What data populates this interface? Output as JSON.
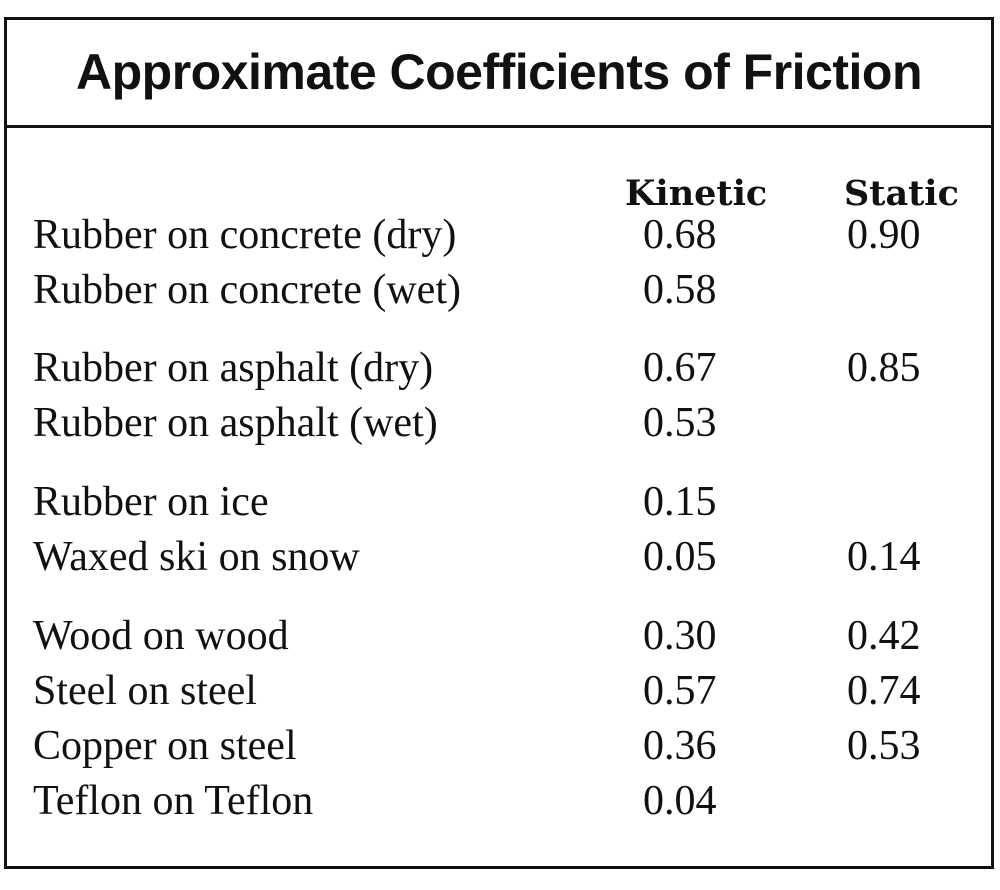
{
  "title": "Approximate Coefficients of Friction",
  "columns": {
    "kinetic": "Kinetic",
    "static": "Static"
  },
  "rows": [
    {
      "label": "Rubber on concrete (dry)",
      "kinetic": "0.68",
      "static": "0.90"
    },
    {
      "label": "Rubber on concrete (wet)",
      "kinetic": "0.58",
      "static": ""
    },
    {
      "label": "Rubber on asphalt (dry)",
      "kinetic": "0.67",
      "static": "0.85"
    },
    {
      "label": "Rubber on asphalt (wet)",
      "kinetic": "0.53",
      "static": ""
    },
    {
      "label": "Rubber on ice",
      "kinetic": "0.15",
      "static": ""
    },
    {
      "label": "Waxed ski on snow",
      "kinetic": "0.05",
      "static": "0.14"
    },
    {
      "label": "Wood on wood",
      "kinetic": "0.30",
      "static": "0.42"
    },
    {
      "label": "Steel on steel",
      "kinetic": "0.57",
      "static": "0.74"
    },
    {
      "label": "Copper on steel",
      "kinetic": "0.36",
      "static": "0.53"
    },
    {
      "label": "Teflon on Teflon",
      "kinetic": "0.04",
      "static": ""
    }
  ]
}
